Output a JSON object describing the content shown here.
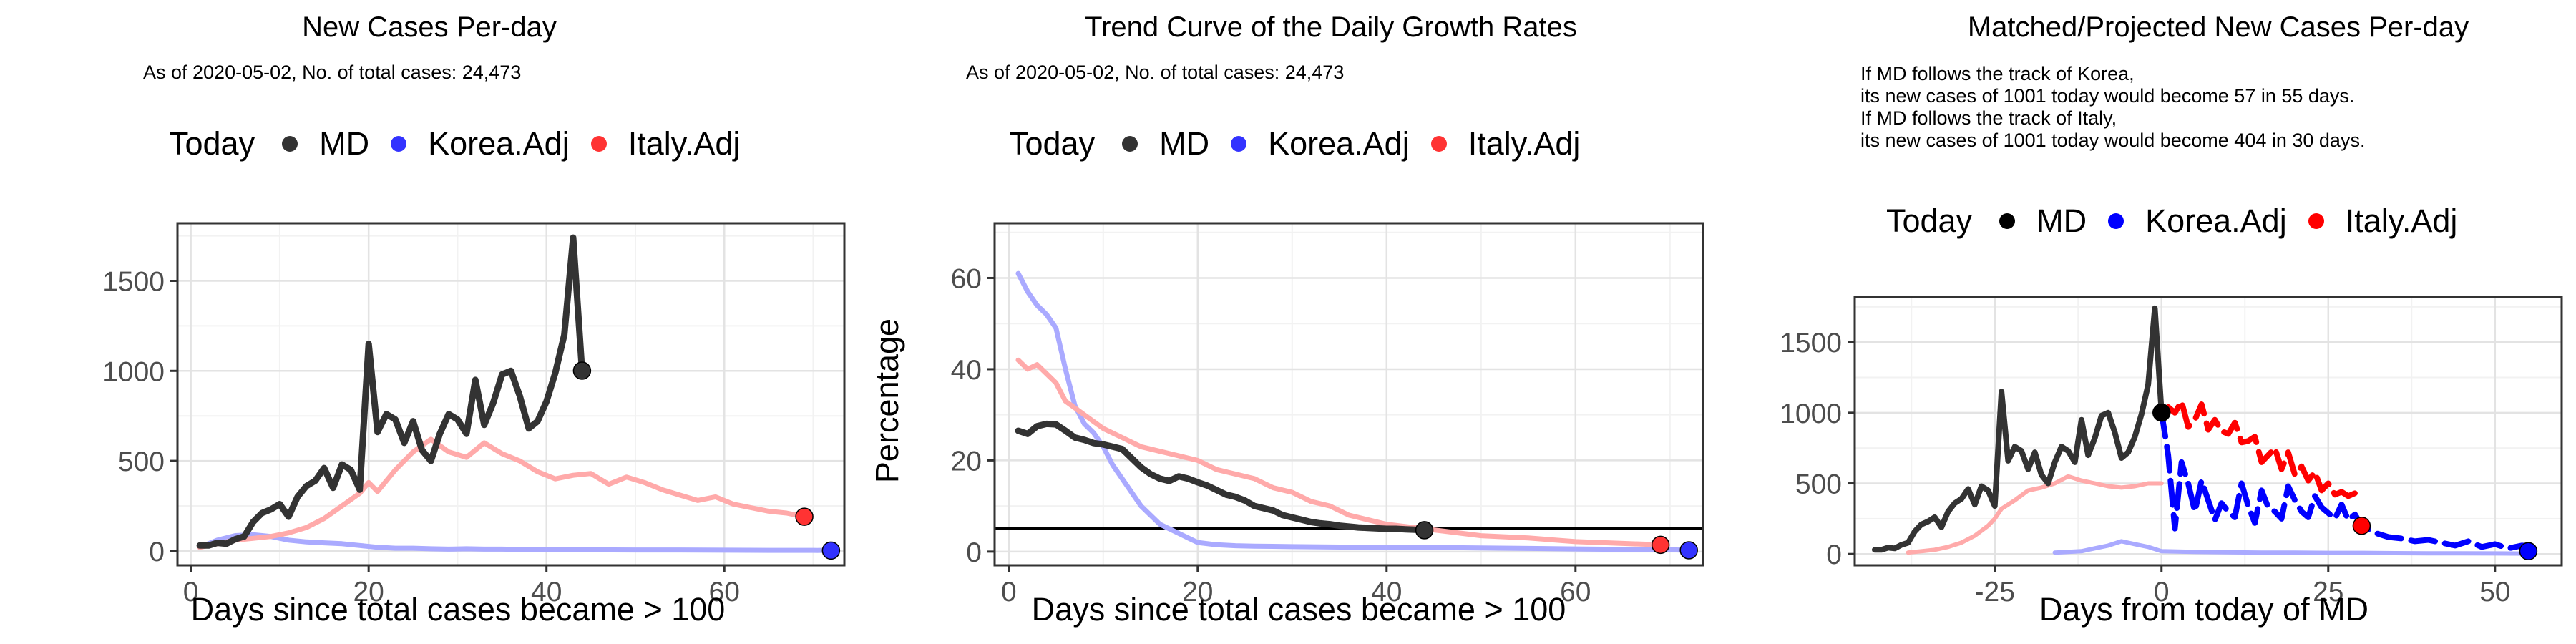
{
  "charts": [
    {
      "title": "New Cases Per-day",
      "subtitle": "As of 2020-05-02, No. of total cases: 24,473",
      "legend": {
        "title": "Today",
        "items": [
          {
            "label": "MD",
            "color": "#333333"
          },
          {
            "label": "Korea.Adj",
            "color": "#3333ff"
          },
          {
            "label": "Italy.Adj",
            "color": "#ff3333"
          }
        ]
      },
      "xlabel": "Days since total cases became > 100",
      "ylabel": ""
    },
    {
      "title": "Trend Curve of the Daily Growth Rates",
      "subtitle": "As of 2020-05-02, No. of total cases: 24,473",
      "legend": {
        "title": "Today",
        "items": [
          {
            "label": "MD",
            "color": "#333333"
          },
          {
            "label": "Korea.Adj",
            "color": "#3333ff"
          },
          {
            "label": "Italy.Adj",
            "color": "#ff3333"
          }
        ]
      },
      "xlabel": "Days since total cases became > 100",
      "ylabel": "Percentage"
    },
    {
      "title": "Matched/Projected New Cases Per-day",
      "note_lines": [
        "If MD follows the track of Korea,",
        "its new cases of 1001 today would become 57 in 55 days.",
        "If MD follows the track of Italy,",
        "its new cases of 1001 today would become 404 in 30 days."
      ],
      "legend": {
        "title": "Today",
        "items": [
          {
            "label": "MD",
            "color": "#000000"
          },
          {
            "label": "Korea.Adj",
            "color": "#0000ff"
          },
          {
            "label": "Italy.Adj",
            "color": "#ff0000"
          }
        ]
      },
      "xlabel": "Days from today of MD",
      "ylabel": ""
    }
  ],
  "chart_data": [
    {
      "type": "line",
      "title": "New Cases Per-day",
      "xlabel": "Days since total cases became > 100",
      "ylabel": "",
      "xlim": [
        -1.5,
        73.5
      ],
      "ylim": [
        -80,
        1820
      ],
      "xticks": [
        0,
        20,
        40,
        60
      ],
      "yticks": [
        0,
        500,
        1000,
        1500
      ],
      "grid": true,
      "legend_position": "top",
      "series": [
        {
          "name": "Korea.Adj",
          "color": "#aaaaff",
          "width": 7,
          "x": [
            1,
            3,
            5,
            7,
            9,
            11,
            13,
            15,
            17,
            19,
            21,
            23,
            25,
            27,
            29,
            31,
            33,
            35,
            37,
            39,
            41,
            43,
            45,
            50,
            55,
            60,
            65,
            70,
            72
          ],
          "y": [
            20,
            60,
            85,
            90,
            80,
            60,
            50,
            45,
            40,
            30,
            20,
            15,
            15,
            12,
            10,
            12,
            10,
            10,
            8,
            8,
            7,
            6,
            6,
            5,
            5,
            4,
            3,
            3,
            2
          ]
        },
        {
          "name": "Italy.Adj",
          "color": "#ffaaaa",
          "width": 7,
          "x": [
            1,
            3,
            5,
            7,
            9,
            11,
            13,
            15,
            17,
            19,
            20,
            21,
            23,
            25,
            27,
            29,
            31,
            33,
            35,
            37,
            39,
            41,
            43,
            45,
            47,
            49,
            51,
            53,
            55,
            57,
            59,
            61,
            63,
            65,
            67,
            69
          ],
          "y": [
            20,
            40,
            60,
            70,
            80,
            100,
            130,
            180,
            250,
            320,
            380,
            330,
            450,
            550,
            620,
            550,
            520,
            600,
            540,
            500,
            440,
            400,
            420,
            430,
            370,
            410,
            380,
            340,
            310,
            280,
            300,
            260,
            240,
            220,
            210,
            190
          ]
        },
        {
          "name": "MD",
          "color": "#333333",
          "width": 9,
          "x": [
            1,
            2,
            3,
            4,
            5,
            6,
            7,
            8,
            9,
            10,
            11,
            12,
            13,
            14,
            15,
            16,
            17,
            18,
            19,
            20,
            21,
            22,
            23,
            24,
            25,
            26,
            27,
            28,
            29,
            30,
            31,
            32,
            33,
            34,
            35,
            36,
            37,
            38,
            39,
            40,
            41,
            42,
            43,
            44
          ],
          "y": [
            30,
            30,
            45,
            40,
            65,
            80,
            160,
            210,
            230,
            260,
            190,
            300,
            360,
            390,
            460,
            350,
            480,
            450,
            340,
            1150,
            660,
            760,
            730,
            600,
            720,
            560,
            500,
            650,
            760,
            730,
            650,
            950,
            700,
            820,
            980,
            1000,
            860,
            680,
            720,
            830,
            990,
            1200,
            1740,
            1001
          ]
        }
      ],
      "today_points": [
        {
          "name": "MD",
          "x": 44,
          "y": 1001,
          "color": "#333333"
        },
        {
          "name": "Italy.Adj",
          "x": 69,
          "y": 190,
          "color": "#ff3333"
        },
        {
          "name": "Korea.Adj",
          "x": 72,
          "y": 2,
          "color": "#3333ff"
        }
      ]
    },
    {
      "type": "line",
      "title": "Trend Curve of the Daily Growth Rates",
      "xlabel": "Days since total cases became > 100",
      "ylabel": "Percentage",
      "xlim": [
        -1.5,
        73.5
      ],
      "ylim": [
        -3,
        72
      ],
      "xticks": [
        0,
        20,
        40,
        60
      ],
      "yticks": [
        0,
        20,
        40,
        60
      ],
      "grid": true,
      "legend_position": "top",
      "hline": 5,
      "series": [
        {
          "name": "Korea.Adj",
          "color": "#aaaaff",
          "width": 7,
          "x": [
            1,
            2,
            3,
            4,
            5,
            6,
            7,
            8,
            9,
            10,
            11,
            12,
            13,
            14,
            15,
            16,
            17,
            18,
            19,
            20,
            22,
            24,
            26,
            30,
            35,
            40,
            45,
            50,
            55,
            60,
            65,
            70,
            72
          ],
          "y": [
            61,
            57,
            54,
            52,
            49,
            40,
            32,
            28,
            26,
            23,
            19,
            16,
            13,
            10,
            8,
            6,
            5,
            4,
            3,
            2,
            1.5,
            1.3,
            1.2,
            1.1,
            1,
            1,
            0.9,
            0.8,
            0.7,
            0.6,
            0.5,
            0.4,
            0.3
          ]
        },
        {
          "name": "Italy.Adj",
          "color": "#ffaaaa",
          "width": 7,
          "x": [
            1,
            2,
            3,
            4,
            5,
            6,
            8,
            10,
            12,
            14,
            16,
            18,
            20,
            22,
            24,
            26,
            28,
            30,
            32,
            34,
            36,
            38,
            40,
            42,
            44,
            46,
            48,
            50,
            55,
            60,
            65,
            69
          ],
          "y": [
            42,
            40,
            41,
            39,
            37,
            33,
            30,
            27,
            25,
            23,
            22,
            21,
            20,
            18,
            17,
            16,
            14,
            13,
            11,
            10,
            8,
            7,
            6,
            5.5,
            5,
            4.5,
            4,
            3.5,
            3,
            2.2,
            1.8,
            1.5
          ]
        },
        {
          "name": "MD",
          "color": "#333333",
          "width": 9,
          "x": [
            1,
            2,
            3,
            4,
            5,
            6,
            7,
            8,
            9,
            10,
            11,
            12,
            13,
            14,
            15,
            16,
            17,
            18,
            19,
            20,
            21,
            22,
            23,
            24,
            25,
            26,
            27,
            28,
            29,
            30,
            31,
            32,
            33,
            34,
            35,
            36,
            37,
            38,
            39,
            40,
            41,
            42,
            43,
            44
          ],
          "y": [
            26.5,
            25.8,
            27.5,
            28,
            27.9,
            26.5,
            25,
            24.5,
            23.8,
            23.5,
            23,
            22.5,
            20.5,
            18.5,
            17,
            16,
            15.5,
            16.5,
            16,
            15.2,
            14.5,
            13.5,
            12.5,
            12,
            11.2,
            10,
            9.5,
            9,
            8,
            7.5,
            7,
            6.5,
            6.2,
            6,
            5.7,
            5.5,
            5.3,
            5.2,
            5.1,
            5,
            5,
            4.9,
            4.8,
            4.7
          ]
        }
      ],
      "today_points": [
        {
          "name": "MD",
          "x": 44,
          "y": 4.7,
          "color": "#333333"
        },
        {
          "name": "Italy.Adj",
          "x": 69,
          "y": 1.5,
          "color": "#ff3333"
        },
        {
          "name": "Korea.Adj",
          "x": 72,
          "y": 0.3,
          "color": "#3333ff"
        }
      ]
    },
    {
      "type": "line",
      "title": "Matched/Projected New Cases Per-day",
      "xlabel": "Days from today of MD",
      "ylabel": "",
      "xlim": [
        -46,
        60
      ],
      "ylim": [
        -80,
        1820
      ],
      "xticks": [
        -25,
        0,
        25,
        50
      ],
      "yticks": [
        0,
        500,
        1000,
        1500
      ],
      "grid": true,
      "legend_position": "top",
      "series": [
        {
          "name": "Korea.Adj (matched)",
          "color": "#aaaaff",
          "width": 6,
          "x": [
            -16,
            -14,
            -12,
            -10,
            -8,
            -6,
            -4,
            -2,
            0,
            5,
            10,
            15,
            20,
            25,
            30,
            35,
            40,
            45,
            50,
            55
          ],
          "y": [
            10,
            15,
            20,
            40,
            60,
            90,
            70,
            50,
            20,
            15,
            12,
            10,
            10,
            8,
            8,
            6,
            5,
            5,
            4,
            3
          ]
        },
        {
          "name": "Italy.Adj (matched)",
          "color": "#ffaaaa",
          "width": 6,
          "x": [
            -38,
            -36,
            -34,
            -32,
            -30,
            -28,
            -26,
            -25,
            -24,
            -22,
            -20,
            -18,
            -16,
            -14,
            -12,
            -10,
            -8,
            -6,
            -4,
            -2,
            0
          ],
          "y": [
            10,
            20,
            30,
            50,
            80,
            130,
            200,
            250,
            320,
            380,
            450,
            470,
            500,
            550,
            520,
            500,
            480,
            470,
            480,
            500,
            500
          ]
        },
        {
          "name": "MD",
          "color": "#333333",
          "width": 8,
          "x": [
            -43,
            -42,
            -41,
            -40,
            -39,
            -38,
            -37,
            -36,
            -35,
            -34,
            -33,
            -32,
            -31,
            -30,
            -29,
            -28,
            -27,
            -26,
            -25,
            -24,
            -23,
            -22,
            -21,
            -20,
            -19,
            -18,
            -17,
            -16,
            -15,
            -14,
            -13,
            -12,
            -11,
            -10,
            -9,
            -8,
            -7,
            -6,
            -5,
            -4,
            -3,
            -2,
            -1,
            0
          ],
          "y": [
            30,
            30,
            45,
            40,
            65,
            80,
            160,
            210,
            230,
            260,
            190,
            300,
            360,
            390,
            460,
            350,
            480,
            450,
            340,
            1150,
            660,
            760,
            730,
            600,
            720,
            560,
            500,
            650,
            760,
            730,
            650,
            950,
            700,
            820,
            980,
            1000,
            860,
            680,
            720,
            830,
            990,
            1200,
            1740,
            1001
          ]
        },
        {
          "name": "Korea.Adj",
          "color": "#0000ff",
          "width": 8,
          "dashed": true,
          "x": [
            0,
            1,
            2,
            3,
            4,
            5,
            6,
            7,
            8,
            9,
            10,
            11,
            12,
            13,
            14,
            15,
            16,
            17,
            18,
            19,
            20,
            21,
            22,
            23,
            24,
            25,
            26,
            27,
            28,
            29,
            30,
            32,
            34,
            36,
            38,
            40,
            42,
            44,
            46,
            48,
            50,
            52,
            54,
            55
          ],
          "y": [
            1001,
            700,
            180,
            650,
            500,
            300,
            520,
            380,
            240,
            360,
            300,
            260,
            500,
            340,
            220,
            450,
            330,
            300,
            250,
            480,
            380,
            300,
            260,
            410,
            330,
            290,
            250,
            350,
            240,
            280,
            200,
            150,
            120,
            110,
            90,
            100,
            80,
            60,
            90,
            50,
            70,
            40,
            60,
            57
          ]
        },
        {
          "name": "Italy.Adj",
          "color": "#ff0000",
          "width": 8,
          "dashed": true,
          "x": [
            0,
            1,
            2,
            3,
            4,
            5,
            6,
            7,
            8,
            9,
            10,
            11,
            12,
            13,
            14,
            15,
            16,
            17,
            18,
            19,
            20,
            21,
            22,
            23,
            24,
            25,
            26,
            27,
            28,
            29,
            30
          ],
          "y": [
            1001,
            1040,
            1000,
            1080,
            900,
            950,
            1060,
            880,
            950,
            870,
            850,
            930,
            790,
            800,
            830,
            650,
            700,
            750,
            600,
            720,
            560,
            620,
            520,
            580,
            450,
            500,
            420,
            440,
            410,
            430,
            404
          ]
        }
      ],
      "today_points": [
        {
          "name": "MD",
          "x": 0,
          "y": 1001,
          "color": "#000000"
        },
        {
          "name": "Italy.Adj",
          "x": 30,
          "y": 200,
          "color": "#ff0000"
        },
        {
          "name": "Korea.Adj",
          "x": 55,
          "y": 20,
          "color": "#0000ff"
        }
      ]
    }
  ]
}
